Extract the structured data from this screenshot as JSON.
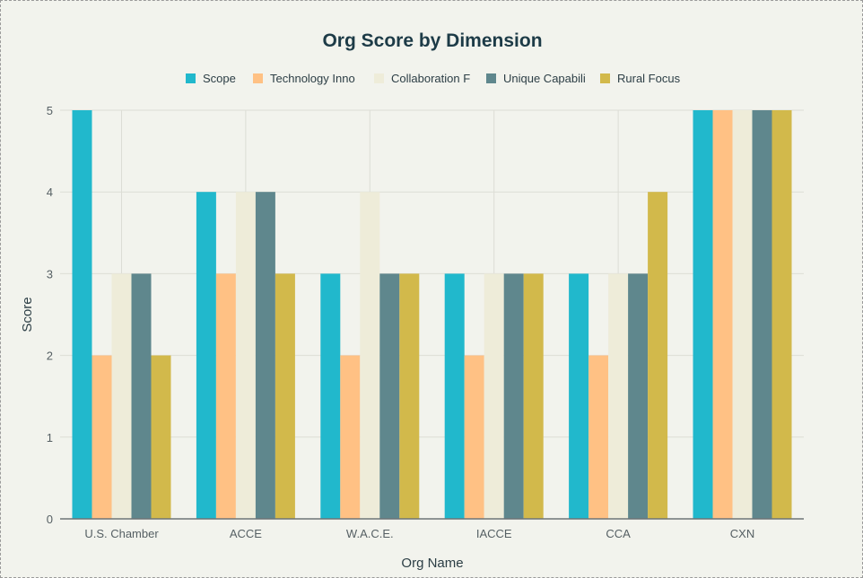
{
  "chart_data": {
    "type": "bar",
    "title": "Org Score by Dimension",
    "xlabel": "Org Name",
    "ylabel": "Score",
    "ylim": [
      0,
      5
    ],
    "yticks": [
      0,
      1,
      2,
      3,
      4,
      5
    ],
    "grid": true,
    "legend_position": "top",
    "categories": [
      "U.S. Chamber",
      "ACCE",
      "W.A.C.E.",
      "IACCE",
      "CCA",
      "CXN"
    ],
    "series": [
      {
        "name": "Scope",
        "color": "#21b8cc",
        "values": [
          5,
          4,
          3,
          3,
          3,
          5
        ]
      },
      {
        "name": "Technology Inno",
        "color": "#ffc184",
        "values": [
          2,
          3,
          2,
          2,
          2,
          5
        ]
      },
      {
        "name": "Collaboration F",
        "color": "#eeecd9",
        "values": [
          3,
          4,
          4,
          3,
          3,
          5
        ]
      },
      {
        "name": "Unique Capabili",
        "color": "#5f878d",
        "values": [
          3,
          4,
          3,
          3,
          3,
          5
        ]
      },
      {
        "name": "Rural Focus",
        "color": "#d2b94b",
        "values": [
          2,
          3,
          3,
          3,
          4,
          5
        ]
      }
    ]
  }
}
